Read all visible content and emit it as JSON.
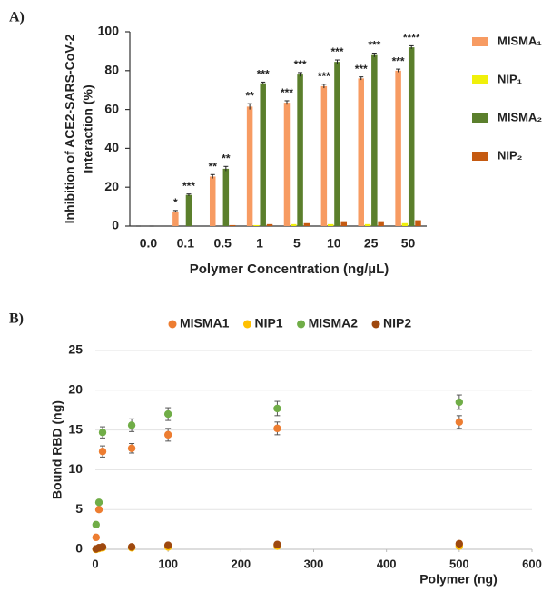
{
  "chart_data": [
    {
      "type": "bar",
      "panel_label": "A)",
      "ylabel": [
        "Inhibition of ACE2-SARS-CoV-2",
        "Interaction (%)"
      ],
      "xlabel": "Polymer Concentration (ng/µL)",
      "categories": [
        "0.0",
        "0.1",
        "0.5",
        "1",
        "5",
        "10",
        "25",
        "50"
      ],
      "ylim": [
        0,
        100
      ],
      "yticks": [
        0,
        20,
        40,
        60,
        80,
        100
      ],
      "series": [
        {
          "name": "MISMA₁",
          "color": "#f79b62",
          "values": [
            0,
            7.5,
            25.5,
            61.5,
            63.5,
            72,
            76,
            80
          ],
          "errors": [
            0,
            0.5,
            1,
            1.5,
            1,
            1,
            0.8,
            0.8
          ],
          "annotations": [
            null,
            "*",
            "**",
            "**",
            "***",
            "***",
            "***",
            "***"
          ]
        },
        {
          "name": "NIP₁",
          "color": "#f0f00a",
          "values": [
            0,
            0,
            0,
            0.5,
            1,
            1,
            1,
            1.5
          ]
        },
        {
          "name": "MISMA₂",
          "color": "#5b7f2c",
          "values": [
            0,
            16,
            29.5,
            73.5,
            78,
            84.5,
            88,
            92
          ],
          "errors": [
            0,
            0.5,
            1.2,
            0.6,
            1,
            1,
            1,
            0.8
          ],
          "annotations": [
            null,
            "***",
            "**",
            "***",
            "***",
            "***",
            "***",
            "****"
          ]
        },
        {
          "name": "NIP₂",
          "color": "#c55a11",
          "values": [
            0,
            0,
            0.5,
            1,
            1.5,
            2.5,
            2.5,
            3
          ]
        }
      ]
    },
    {
      "type": "scatter",
      "panel_label": "B)",
      "xlabel": "Polymer (ng)",
      "ylabel": "Bound RBD (ng)",
      "x": [
        1,
        5,
        10,
        50,
        100,
        250,
        500
      ],
      "xlim": [
        0,
        600
      ],
      "xticks": [
        0,
        100,
        200,
        300,
        400,
        500,
        600
      ],
      "ylim": [
        0,
        25
      ],
      "yticks": [
        0,
        5,
        10,
        15,
        20,
        25
      ],
      "grid": true,
      "series": [
        {
          "name": "MISMA1",
          "color": "#ed7d31",
          "values": [
            1.5,
            5.0,
            12.3,
            12.7,
            14.4,
            15.2,
            16.0
          ],
          "errors": [
            0.1,
            0.2,
            0.7,
            0.6,
            0.8,
            0.8,
            0.8
          ]
        },
        {
          "name": "NIP1",
          "color": "#ffc000",
          "values": [
            0.0,
            0.1,
            0.2,
            0.2,
            0.3,
            0.4,
            0.4
          ]
        },
        {
          "name": "MISMA2",
          "color": "#70ad47",
          "values": [
            3.1,
            5.9,
            14.7,
            15.6,
            17.0,
            17.7,
            18.5
          ],
          "errors": [
            0.1,
            0.2,
            0.7,
            0.8,
            0.8,
            0.9,
            0.9
          ]
        },
        {
          "name": "NIP2",
          "color": "#9e480e",
          "values": [
            0.05,
            0.2,
            0.3,
            0.3,
            0.5,
            0.6,
            0.7
          ]
        }
      ]
    }
  ]
}
